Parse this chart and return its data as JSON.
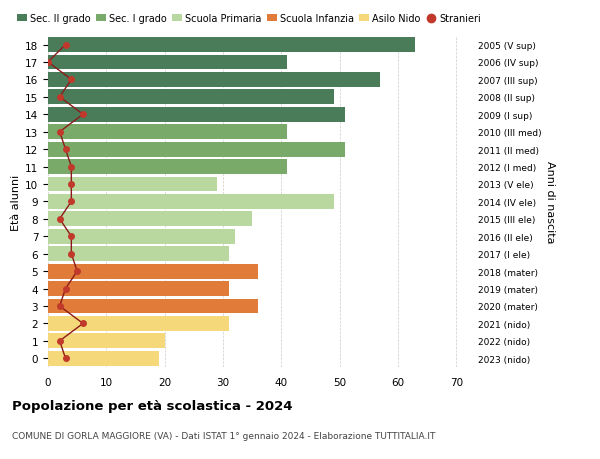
{
  "ages": [
    18,
    17,
    16,
    15,
    14,
    13,
    12,
    11,
    10,
    9,
    8,
    7,
    6,
    5,
    4,
    3,
    2,
    1,
    0
  ],
  "right_labels": [
    "2005 (V sup)",
    "2006 (IV sup)",
    "2007 (III sup)",
    "2008 (II sup)",
    "2009 (I sup)",
    "2010 (III med)",
    "2011 (II med)",
    "2012 (I med)",
    "2013 (V ele)",
    "2014 (IV ele)",
    "2015 (III ele)",
    "2016 (II ele)",
    "2017 (I ele)",
    "2018 (mater)",
    "2019 (mater)",
    "2020 (mater)",
    "2021 (nido)",
    "2022 (nido)",
    "2023 (nido)"
  ],
  "bar_values": [
    63,
    41,
    57,
    49,
    51,
    41,
    51,
    41,
    29,
    49,
    35,
    32,
    31,
    36,
    31,
    36,
    31,
    20,
    19
  ],
  "bar_colors": [
    "#4a7c59",
    "#4a7c59",
    "#4a7c59",
    "#4a7c59",
    "#4a7c59",
    "#7aaa6a",
    "#7aaa6a",
    "#7aaa6a",
    "#b8d8a0",
    "#b8d8a0",
    "#b8d8a0",
    "#b8d8a0",
    "#b8d8a0",
    "#e07b39",
    "#e07b39",
    "#e07b39",
    "#f5d87a",
    "#f5d87a",
    "#f5d87a"
  ],
  "stranieri_values": [
    3,
    0,
    4,
    2,
    6,
    2,
    3,
    4,
    4,
    4,
    2,
    4,
    4,
    5,
    3,
    2,
    6,
    2,
    3
  ],
  "legend_labels": [
    "Sec. II grado",
    "Sec. I grado",
    "Scuola Primaria",
    "Scuola Infanzia",
    "Asilo Nido",
    "Stranieri"
  ],
  "legend_colors": [
    "#4a7c59",
    "#7aaa6a",
    "#b8d8a0",
    "#e07b39",
    "#f5d87a",
    "#c0392b"
  ],
  "xlabel_vals": [
    0,
    10,
    20,
    30,
    40,
    50,
    60,
    70
  ],
  "xlim": [
    0,
    72
  ],
  "ylabel_left": "Età alunni",
  "ylabel_right": "Anni di nascita",
  "title": "Popolazione per età scolastica - 2024",
  "subtitle": "COMUNE DI GORLA MAGGIORE (VA) - Dati ISTAT 1° gennaio 2024 - Elaborazione TUTTITALIA.IT",
  "stranieri_color": "#c0392b",
  "stranieri_line_color": "#8b1a1a",
  "bg_color": "#ffffff",
  "grid_color": "#cccccc"
}
